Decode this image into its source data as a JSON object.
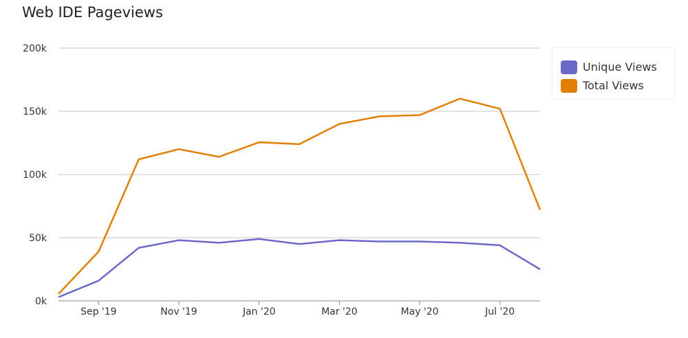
{
  "chart_data": {
    "type": "line",
    "title": "Web IDE Pageviews",
    "x": [
      "Aug '19",
      "Sep '19",
      "Oct '19",
      "Nov '19",
      "Dec '19",
      "Jan '20",
      "Feb '20",
      "Mar '20",
      "Apr '20",
      "May '20",
      "Jun '20",
      "Jul '20",
      "Aug '20"
    ],
    "x_tick_labels": [
      "Sep '19",
      "Nov '19",
      "Jan '20",
      "Mar '20",
      "May '20",
      "Jul '20"
    ],
    "y_tick_labels": [
      "0k",
      "50k",
      "100k",
      "150k",
      "200k"
    ],
    "ylim": [
      0,
      200000
    ],
    "grid": true,
    "legend_placement": "top-right",
    "series": [
      {
        "name": "Unique Views",
        "color": "#6b69c8",
        "values": [
          3000,
          16000,
          42000,
          48000,
          46000,
          49000,
          45000,
          48000,
          47000,
          47000,
          46000,
          44000,
          25000
        ]
      },
      {
        "name": "Total Views",
        "color": "#e07f00",
        "values": [
          5500,
          39000,
          112000,
          120000,
          114000,
          125500,
          124000,
          140000,
          146000,
          147000,
          160000,
          152000,
          72000
        ]
      }
    ]
  }
}
